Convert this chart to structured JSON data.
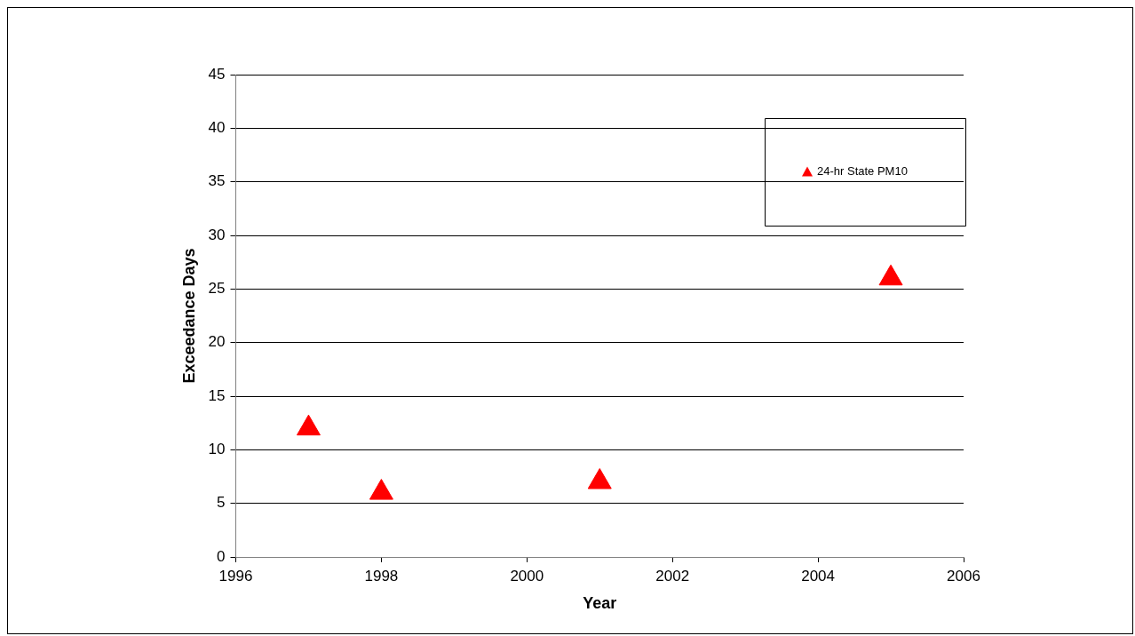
{
  "chart_data": {
    "type": "scatter",
    "xlabel": "Year",
    "ylabel": "Exceedance Days",
    "x": [
      1997,
      1998,
      2001,
      2005
    ],
    "series": [
      {
        "name": "24-hr State PM10",
        "color": "#ff0000",
        "values": [
          12,
          6,
          7,
          26
        ]
      }
    ],
    "xlim": [
      1996,
      2006
    ],
    "xticks": [
      1996,
      1998,
      2000,
      2002,
      2004,
      2006
    ],
    "ylim": [
      0,
      45
    ],
    "yticks": [
      0,
      5,
      10,
      15,
      20,
      25,
      30,
      35,
      40,
      45
    ],
    "grid": "y",
    "legend": "top right",
    "marker": "triangle"
  }
}
